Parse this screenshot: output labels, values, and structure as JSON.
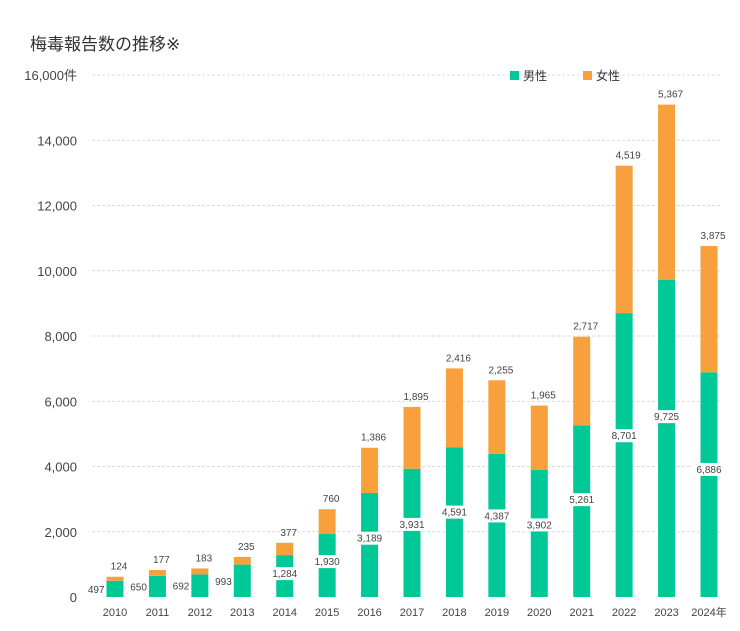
{
  "chart_data": {
    "type": "bar",
    "stacked": true,
    "title": "梅毒報告数の推移※",
    "ylabel": "件",
    "ylim": [
      0,
      16000
    ],
    "yticks": [
      0,
      2000,
      4000,
      6000,
      8000,
      10000,
      12000,
      14000,
      16000
    ],
    "ytick_labels": [
      "0",
      "2,000",
      "4,000",
      "6,000",
      "8,000",
      "10,000",
      "12,000",
      "14,000",
      "16,000件"
    ],
    "categories": [
      "2010",
      "2011",
      "2012",
      "2013",
      "2014",
      "2015",
      "2016",
      "2017",
      "2018",
      "2019",
      "2020",
      "2021",
      "2022",
      "2023",
      "2024年"
    ],
    "series": [
      {
        "name": "男性",
        "color": "#00c896",
        "values": [
          497,
          650,
          692,
          993,
          1284,
          1930,
          3189,
          3931,
          4591,
          4387,
          3902,
          5261,
          8701,
          9725,
          6886
        ],
        "labels": [
          "497",
          "650",
          "692",
          "993",
          "1,284",
          "1,930",
          "3,189",
          "3,931",
          "4,591",
          "4,387",
          "3,902",
          "5,261",
          "8,701",
          "9,725",
          "6,886"
        ]
      },
      {
        "name": "女性",
        "color": "#f7a03c",
        "values": [
          124,
          177,
          183,
          235,
          377,
          760,
          1386,
          1895,
          2416,
          2255,
          1965,
          2717,
          4519,
          5367,
          3875
        ],
        "labels": [
          "124",
          "177",
          "183",
          "235",
          "377",
          "760",
          "1,386",
          "1,895",
          "2,416",
          "2,255",
          "1,965",
          "2,717",
          "4,519",
          "5,367",
          "3,875"
        ]
      }
    ],
    "grid": true,
    "legend_position": "top-right"
  }
}
